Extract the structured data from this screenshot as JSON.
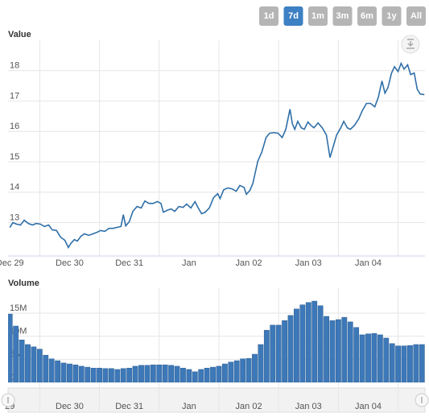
{
  "range_selector": {
    "buttons": [
      "1d",
      "7d",
      "1m",
      "3m",
      "6m",
      "1y",
      "All"
    ],
    "selected": 1
  },
  "chart_data": [
    {
      "type": "line",
      "y_axis_title": "Value",
      "color": "#2f6fa8",
      "grid": true,
      "xlim": [
        -0.03,
        6.95
      ],
      "ylim": [
        11.9,
        19
      ],
      "xticks": [
        {
          "value": 0,
          "label": "Dec 29"
        },
        {
          "value": 1,
          "label": "Dec 30"
        },
        {
          "value": 2,
          "label": "Dec 31"
        },
        {
          "value": 3,
          "label": "Jan"
        },
        {
          "value": 4,
          "label": "Jan 02"
        },
        {
          "value": 5,
          "label": "Jan 03"
        },
        {
          "value": 6,
          "label": "Jan 04"
        }
      ],
      "yticks": [
        13,
        14,
        15,
        16,
        17,
        18
      ],
      "x": [
        0,
        0.05,
        0.11,
        0.18,
        0.24,
        0.31,
        0.38,
        0.44,
        0.51,
        0.58,
        0.65,
        0.71,
        0.78,
        0.85,
        0.92,
        0.98,
        1.02,
        1.08,
        1.13,
        1.19,
        1.25,
        1.32,
        1.39,
        1.46,
        1.52,
        1.59,
        1.66,
        1.73,
        1.79,
        1.86,
        1.9,
        1.94,
        2.0,
        2.06,
        2.13,
        2.2,
        2.26,
        2.33,
        2.4,
        2.47,
        2.53,
        2.57,
        2.63,
        2.7,
        2.76,
        2.83,
        2.9,
        2.96,
        3.03,
        3.1,
        3.14,
        3.21,
        3.27,
        3.34,
        3.41,
        3.48,
        3.52,
        3.58,
        3.65,
        3.72,
        3.79,
        3.85,
        3.92,
        3.96,
        4.02,
        4.07,
        4.15,
        4.22,
        4.29,
        4.35,
        4.42,
        4.49,
        4.56,
        4.62,
        4.69,
        4.73,
        4.77,
        4.82,
        4.88,
        4.93,
        4.99,
        5.04,
        5.09,
        5.16,
        5.23,
        5.3,
        5.36,
        5.42,
        5.47,
        5.54,
        5.59,
        5.65,
        5.7,
        5.77,
        5.84,
        5.9,
        5.97,
        6.04,
        6.11,
        6.17,
        6.23,
        6.28,
        6.33,
        6.39,
        6.44,
        6.5,
        6.55,
        6.6,
        6.66,
        6.71,
        6.77,
        6.82,
        6.87,
        6.94
      ],
      "values": [
        12.84,
        13.0,
        12.95,
        12.92,
        13.08,
        12.97,
        12.92,
        12.97,
        12.95,
        12.87,
        12.92,
        12.76,
        12.74,
        12.52,
        12.42,
        12.18,
        12.31,
        12.44,
        12.39,
        12.55,
        12.63,
        12.58,
        12.63,
        12.68,
        12.74,
        12.71,
        12.81,
        12.81,
        12.84,
        12.87,
        13.26,
        12.89,
        13.03,
        13.37,
        13.53,
        13.48,
        13.71,
        13.63,
        13.63,
        13.69,
        13.63,
        13.34,
        13.4,
        13.45,
        13.37,
        13.53,
        13.5,
        13.61,
        13.48,
        13.69,
        13.53,
        13.29,
        13.34,
        13.48,
        13.82,
        13.95,
        13.79,
        14.08,
        14.14,
        14.11,
        14.03,
        14.22,
        14.16,
        13.93,
        14.06,
        14.3,
        15.01,
        15.33,
        15.8,
        15.94,
        15.96,
        15.94,
        15.8,
        16.07,
        16.73,
        16.25,
        16.07,
        16.33,
        16.12,
        16.07,
        16.31,
        16.2,
        16.12,
        16.28,
        16.12,
        15.88,
        15.14,
        15.54,
        15.88,
        16.12,
        16.33,
        16.12,
        16.07,
        16.2,
        16.41,
        16.68,
        16.92,
        16.92,
        16.81,
        17.13,
        17.66,
        17.26,
        17.44,
        17.92,
        18.13,
        17.97,
        18.24,
        18.05,
        18.19,
        17.87,
        17.92,
        17.39,
        17.23,
        17.21
      ]
    },
    {
      "type": "bar",
      "y_axis_title": "Volume",
      "color": "#3d78b8",
      "grid": true,
      "xlim": [
        -0.03,
        6.95
      ],
      "ylim": [
        0,
        20400000
      ],
      "xticks": [
        {
          "value": 0,
          "label": "29"
        },
        {
          "value": 1,
          "label": "Dec 30"
        },
        {
          "value": 2,
          "label": "Dec 31"
        },
        {
          "value": 3,
          "label": "Jan"
        },
        {
          "value": 4,
          "label": "Jan 02"
        },
        {
          "value": 5,
          "label": "Jan 03"
        },
        {
          "value": 6,
          "label": "Jan 04"
        }
      ],
      "yticks": [
        0,
        {
          "value": 5000000,
          "label": "5M"
        },
        {
          "value": 10000000,
          "label": "10M"
        },
        {
          "value": 15000000,
          "label": "15M"
        }
      ],
      "x": [
        0,
        0.1,
        0.2,
        0.3,
        0.4,
        0.5,
        0.6,
        0.7,
        0.8,
        0.9,
        1.0,
        1.1,
        1.2,
        1.3,
        1.4,
        1.5,
        1.6,
        1.7,
        1.8,
        1.9,
        2.0,
        2.1,
        2.2,
        2.3,
        2.4,
        2.5,
        2.6,
        2.7,
        2.8,
        2.9,
        3.0,
        3.1,
        3.2,
        3.3,
        3.4,
        3.5,
        3.6,
        3.7,
        3.8,
        3.9,
        4.0,
        4.1,
        4.2,
        4.3,
        4.4,
        4.5,
        4.6,
        4.7,
        4.8,
        4.9,
        5.0,
        5.1,
        5.2,
        5.3,
        5.4,
        5.5,
        5.6,
        5.7,
        5.8,
        5.9,
        6.0,
        6.1,
        6.2,
        6.3,
        6.4,
        6.5,
        6.6,
        6.7,
        6.8,
        6.9
      ],
      "values": [
        14800000,
        12200000,
        9200000,
        8200000,
        7700000,
        7200000,
        5900000,
        5100000,
        4700000,
        4200000,
        4000000,
        3800000,
        3500000,
        3300000,
        3100000,
        3100000,
        3000000,
        3000000,
        2800000,
        3000000,
        3100000,
        3500000,
        3700000,
        3700000,
        3800000,
        3800000,
        3800000,
        3700000,
        3500000,
        3100000,
        2800000,
        2300000,
        2800000,
        3100000,
        3300000,
        3500000,
        4000000,
        4400000,
        4700000,
        5100000,
        5200000,
        6100000,
        8200000,
        11300000,
        12400000,
        12400000,
        13400000,
        14500000,
        15900000,
        16800000,
        17300000,
        17600000,
        16600000,
        14300000,
        13400000,
        13600000,
        14100000,
        13100000,
        11900000,
        10300000,
        10500000,
        10600000,
        10300000,
        9600000,
        8400000,
        7900000,
        7900000,
        8000000,
        8200000,
        8200000
      ]
    }
  ]
}
